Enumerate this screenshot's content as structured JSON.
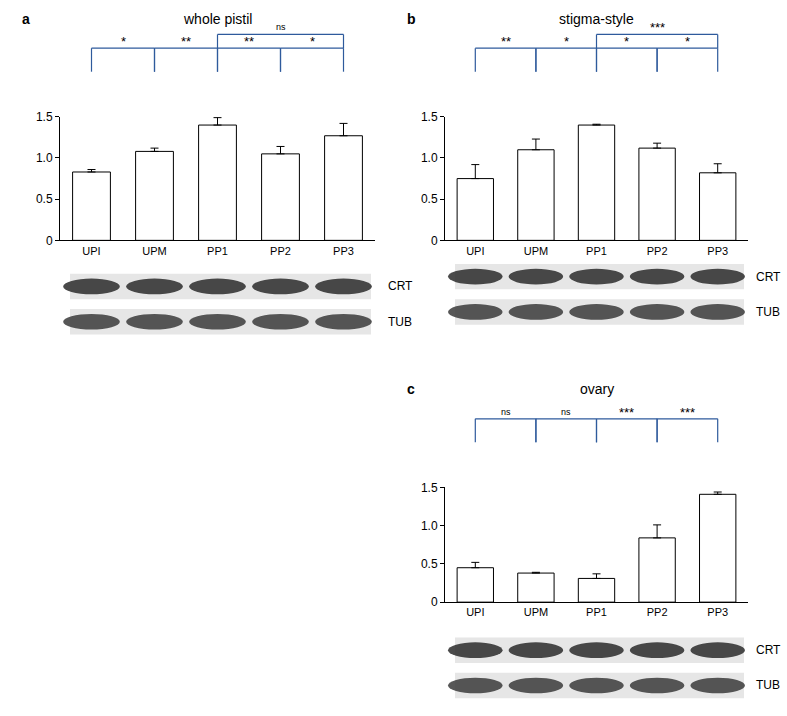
{
  "chart_data": [
    {
      "type": "bar",
      "panel": "a",
      "title": "whole pistil",
      "categories": [
        "UPI",
        "UPM",
        "PP1",
        "PP2",
        "PP3"
      ],
      "values": [
        0.83,
        1.08,
        1.4,
        1.05,
        1.27
      ],
      "errors": [
        0.03,
        0.04,
        0.09,
        0.09,
        0.15
      ],
      "color": "#ffffff",
      "ylim": [
        0,
        1.5
      ],
      "yticks": [
        0,
        0.5,
        {
          "value": 1,
          "label": "1.0"
        },
        1.5
      ],
      "comparisons": [
        {
          "from": "UPI",
          "to": "UPM",
          "label": "*"
        },
        {
          "from": "UPM",
          "to": "PP1",
          "label": "**"
        },
        {
          "from": "PP1",
          "to": "PP2",
          "label": "**"
        },
        {
          "from": "PP2",
          "to": "PP3",
          "label": "*"
        },
        {
          "from": "PP1",
          "to": "PP3",
          "label": "ns"
        }
      ],
      "blot_labels": [
        "CRT",
        "TUB"
      ]
    },
    {
      "type": "bar",
      "panel": "b",
      "title": "stigma-style",
      "categories": [
        "UPI",
        "UPM",
        "PP1",
        "PP2",
        "PP3"
      ],
      "values": [
        0.75,
        1.1,
        1.4,
        1.12,
        0.82
      ],
      "errors": [
        0.17,
        0.13,
        0.01,
        0.06,
        0.11
      ],
      "color": "#ffffff",
      "ylim": [
        0,
        1.5
      ],
      "yticks": [
        0,
        0.5,
        {
          "value": 1,
          "label": "1.0"
        },
        1.5
      ],
      "comparisons": [
        {
          "from": "UPI",
          "to": "UPM",
          "label": "**"
        },
        {
          "from": "UPM",
          "to": "PP1",
          "label": "*"
        },
        {
          "from": "PP1",
          "to": "PP2",
          "label": "*"
        },
        {
          "from": "PP2",
          "to": "PP3",
          "label": "*"
        },
        {
          "from": "PP1",
          "to": "PP3",
          "label": "***"
        }
      ],
      "blot_labels": [
        "CRT",
        "TUB"
      ]
    },
    {
      "type": "bar",
      "panel": "c",
      "title": "ovary",
      "categories": [
        "UPI",
        "UPM",
        "PP1",
        "PP2",
        "PP3"
      ],
      "values": [
        0.45,
        0.38,
        0.31,
        0.84,
        1.41
      ],
      "errors": [
        0.07,
        0.01,
        0.06,
        0.17,
        0.03
      ],
      "color": "#ffffff",
      "ylim": [
        0,
        1.5
      ],
      "yticks": [
        0,
        0.5,
        {
          "value": 1,
          "label": "1.0"
        },
        1.5
      ],
      "comparisons": [
        {
          "from": "UPI",
          "to": "UPM",
          "label": "ns"
        },
        {
          "from": "UPM",
          "to": "PP1",
          "label": "ns"
        },
        {
          "from": "PP1",
          "to": "PP2",
          "label": "***"
        },
        {
          "from": "PP2",
          "to": "PP3",
          "label": "***"
        }
      ],
      "blot_labels": [
        "CRT",
        "TUB"
      ]
    }
  ]
}
